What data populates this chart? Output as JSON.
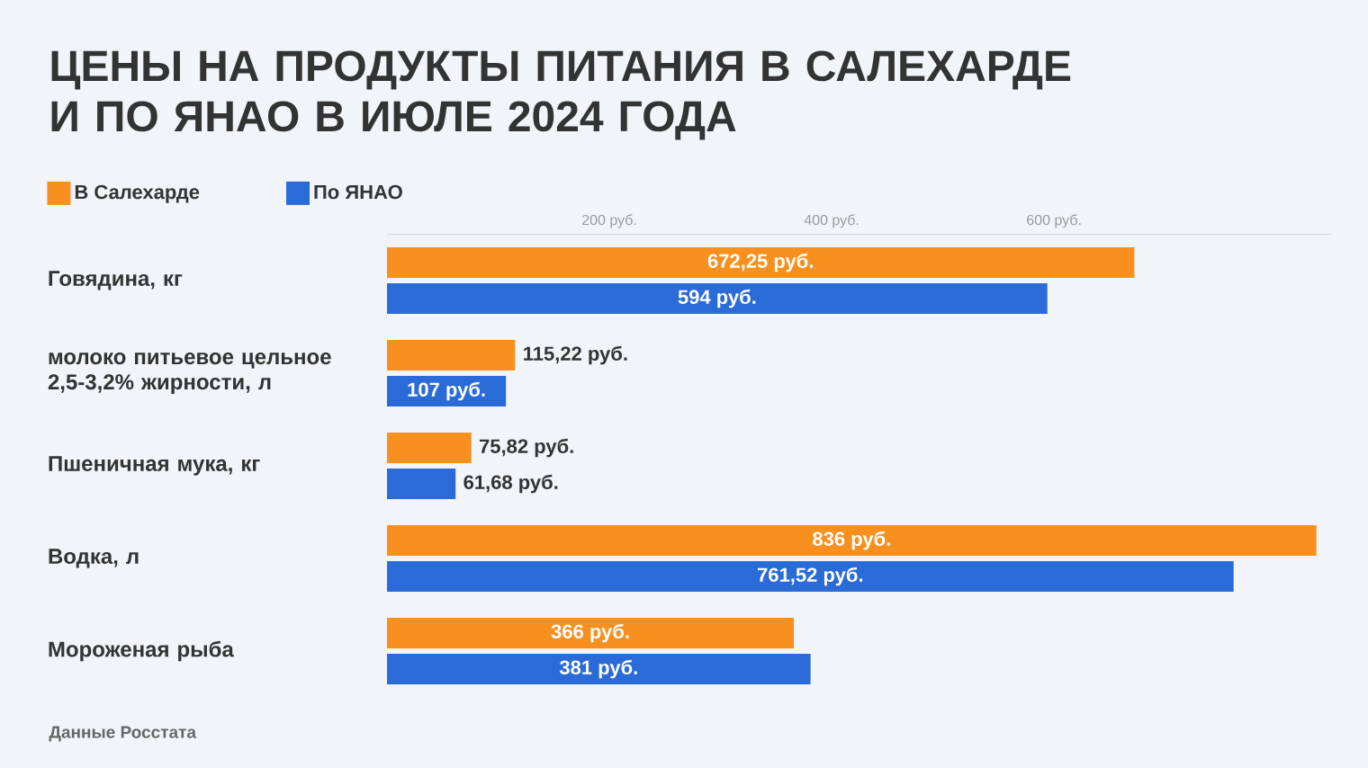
{
  "chart_data": {
    "type": "bar",
    "orientation": "horizontal",
    "title": "ЦЕНЫ НА ПРОДУКТЫ ПИТАНИЯ В САЛЕХАРДЕ И ПО ЯНАО В ИЮЛЕ 2024 ГОДА",
    "categories": [
      "Говядина, кг",
      "молоко питьевое цельное 2,5-3,2% жирности, л",
      "Пшеничная мука, кг",
      "Водка, л",
      "Мороженая рыба"
    ],
    "series": [
      {
        "name": "В Салехарде",
        "color": "#f7901e",
        "values": [
          672.25,
          115.22,
          75.82,
          836,
          366
        ],
        "value_labels": [
          "672,25 руб.",
          "115,22 руб.",
          "75,82 руб.",
          "836 руб.",
          "366 руб."
        ]
      },
      {
        "name": "По ЯНАО",
        "color": "#2b6bd8",
        "values": [
          594,
          107,
          61.68,
          761.52,
          381
        ],
        "value_labels": [
          "594 руб.",
          "107 руб.",
          "61,68 руб.",
          "761,52 руб.",
          "381 руб."
        ]
      }
    ],
    "xlim": [
      0,
      850
    ],
    "xticks": [
      {
        "value": 200,
        "label": "200 руб."
      },
      {
        "value": 400,
        "label": "400 руб."
      },
      {
        "value": 600,
        "label": "600 руб."
      }
    ],
    "legend": "top left",
    "annotations": [
      "Данные Росстата"
    ]
  }
}
